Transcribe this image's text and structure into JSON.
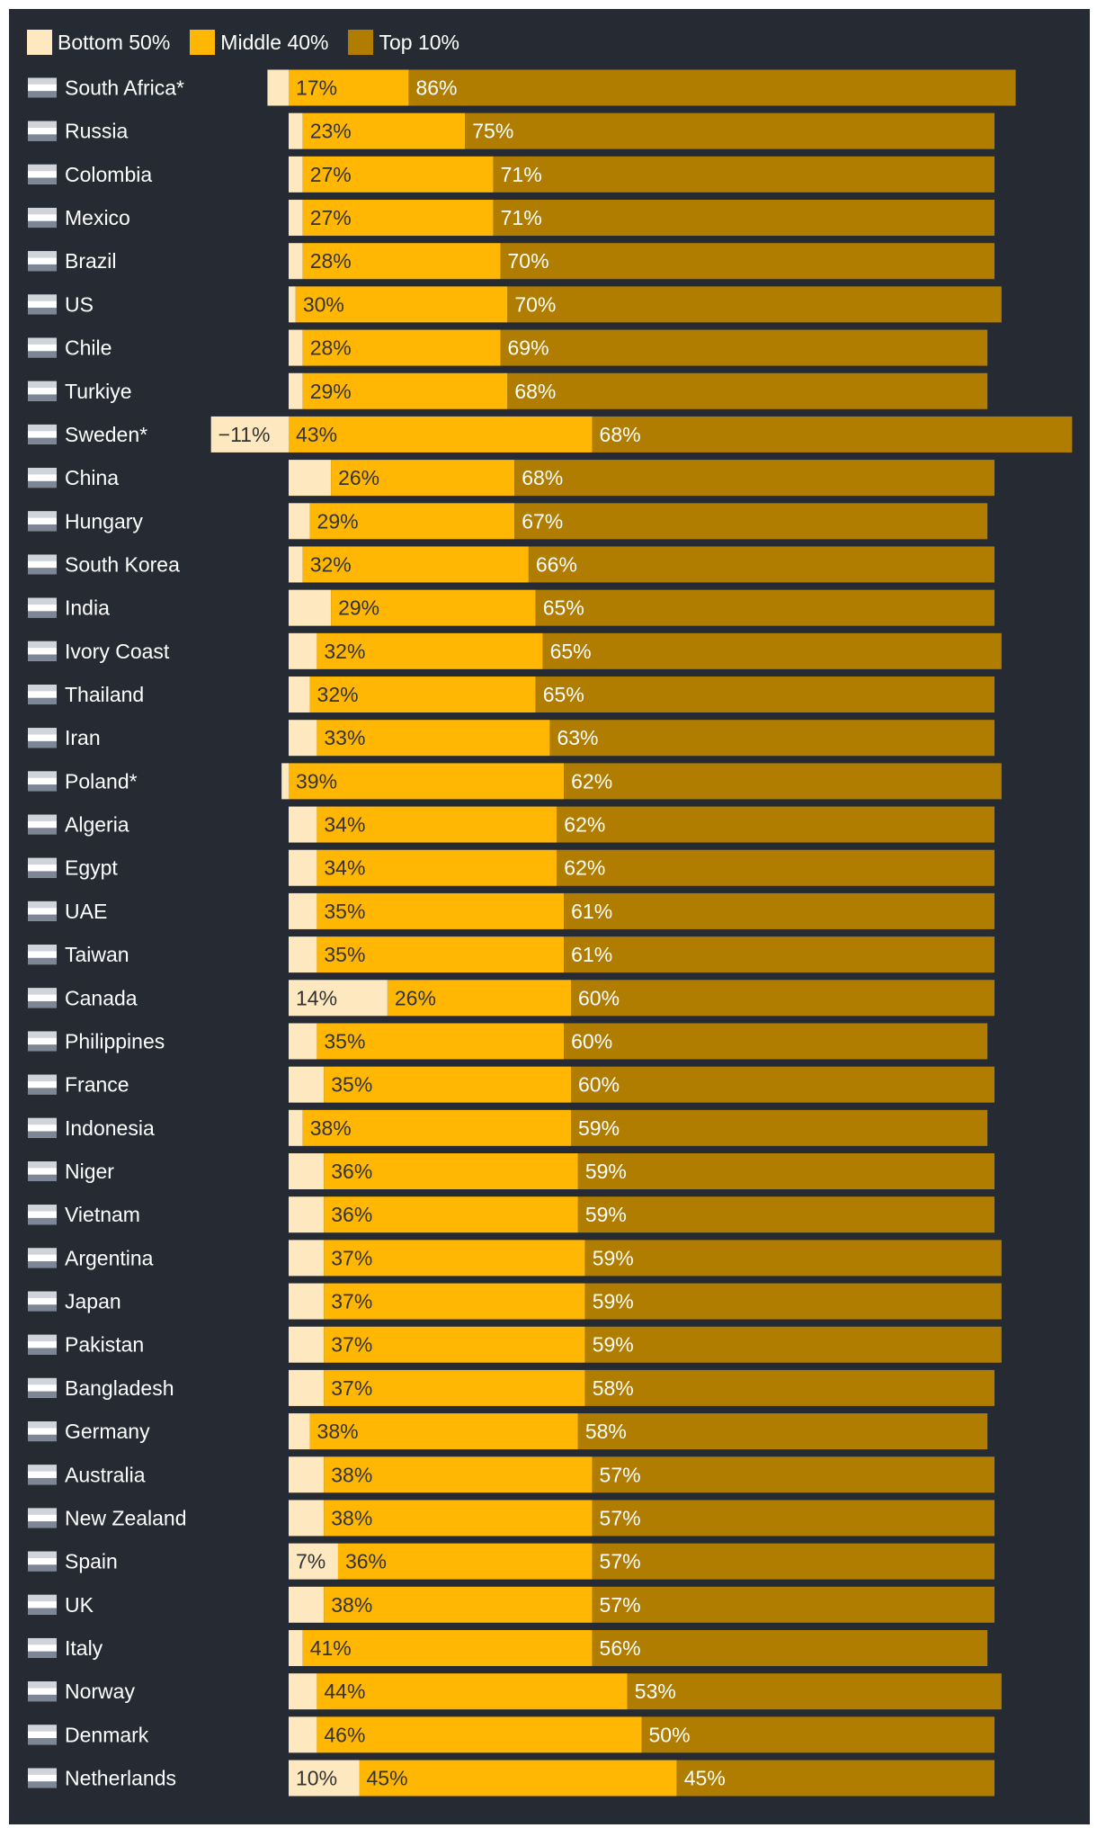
{
  "chart_data": {
    "type": "bar",
    "stacked": true,
    "legend_position": "top-left",
    "grid": false,
    "colors": {
      "background": "#262b33",
      "bottom_50": "#fde8c0",
      "middle_40": "#ffb703",
      "top_10": "#b07d00",
      "label_dark": "#333333",
      "label_light": "#ffffff"
    },
    "legend": [
      {
        "key": "bottom_50",
        "label": "Bottom 50%"
      },
      {
        "key": "middle_40",
        "label": "Middle 40%"
      },
      {
        "key": "top_10",
        "label": "Top 10%"
      }
    ],
    "series": [
      {
        "name": "Bottom 50%",
        "values": [
          -3,
          2,
          2,
          2,
          2,
          1,
          2,
          2,
          -11,
          6,
          3,
          2,
          6,
          4,
          3,
          4,
          -1,
          4,
          4,
          4,
          4,
          14,
          4,
          5,
          2,
          5,
          5,
          5,
          5,
          5,
          5,
          3,
          5,
          5,
          7,
          5,
          2,
          4,
          4,
          10
        ]
      },
      {
        "name": "Middle 40%",
        "values": [
          17,
          23,
          27,
          27,
          28,
          30,
          28,
          29,
          43,
          26,
          29,
          32,
          29,
          32,
          32,
          33,
          39,
          34,
          34,
          35,
          35,
          26,
          35,
          35,
          38,
          36,
          36,
          37,
          37,
          37,
          37,
          38,
          38,
          38,
          36,
          38,
          41,
          44,
          46,
          45
        ]
      },
      {
        "name": "Top 10%",
        "values": [
          86,
          75,
          71,
          71,
          70,
          70,
          69,
          68,
          68,
          68,
          67,
          66,
          65,
          65,
          65,
          63,
          62,
          62,
          62,
          61,
          61,
          60,
          60,
          60,
          59,
          59,
          59,
          59,
          59,
          59,
          58,
          58,
          57,
          57,
          57,
          57,
          56,
          53,
          50,
          45
        ]
      }
    ],
    "value_labels": [
      {
        "bottom": "",
        "middle": "17%",
        "top": "86%"
      },
      {
        "bottom": "",
        "middle": "23%",
        "top": "75%"
      },
      {
        "bottom": "",
        "middle": "27%",
        "top": "71%"
      },
      {
        "bottom": "",
        "middle": "27%",
        "top": "71%"
      },
      {
        "bottom": "",
        "middle": "28%",
        "top": "70%"
      },
      {
        "bottom": "",
        "middle": "30%",
        "top": "70%"
      },
      {
        "bottom": "",
        "middle": "28%",
        "top": "69%"
      },
      {
        "bottom": "",
        "middle": "29%",
        "top": "68%"
      },
      {
        "bottom": "−11%",
        "middle": "43%",
        "top": "68%"
      },
      {
        "bottom": "",
        "middle": "26%",
        "top": "68%"
      },
      {
        "bottom": "",
        "middle": "29%",
        "top": "67%"
      },
      {
        "bottom": "",
        "middle": "32%",
        "top": "66%"
      },
      {
        "bottom": "",
        "middle": "29%",
        "top": "65%"
      },
      {
        "bottom": "",
        "middle": "32%",
        "top": "65%"
      },
      {
        "bottom": "",
        "middle": "32%",
        "top": "65%"
      },
      {
        "bottom": "",
        "middle": "33%",
        "top": "63%"
      },
      {
        "bottom": "",
        "middle": "39%",
        "top": "62%"
      },
      {
        "bottom": "",
        "middle": "34%",
        "top": "62%"
      },
      {
        "bottom": "",
        "middle": "34%",
        "top": "62%"
      },
      {
        "bottom": "",
        "middle": "35%",
        "top": "61%"
      },
      {
        "bottom": "",
        "middle": "35%",
        "top": "61%"
      },
      {
        "bottom": "14%",
        "middle": "26%",
        "top": "60%"
      },
      {
        "bottom": "",
        "middle": "35%",
        "top": "60%"
      },
      {
        "bottom": "",
        "middle": "35%",
        "top": "60%"
      },
      {
        "bottom": "",
        "middle": "38%",
        "top": "59%"
      },
      {
        "bottom": "",
        "middle": "36%",
        "top": "59%"
      },
      {
        "bottom": "",
        "middle": "36%",
        "top": "59%"
      },
      {
        "bottom": "",
        "middle": "37%",
        "top": "59%"
      },
      {
        "bottom": "",
        "middle": "37%",
        "top": "59%"
      },
      {
        "bottom": "",
        "middle": "37%",
        "top": "59%"
      },
      {
        "bottom": "",
        "middle": "37%",
        "top": "58%"
      },
      {
        "bottom": "",
        "middle": "38%",
        "top": "58%"
      },
      {
        "bottom": "",
        "middle": "38%",
        "top": "57%"
      },
      {
        "bottom": "",
        "middle": "38%",
        "top": "57%"
      },
      {
        "bottom": "7%",
        "middle": "36%",
        "top": "57%"
      },
      {
        "bottom": "",
        "middle": "38%",
        "top": "57%"
      },
      {
        "bottom": "",
        "middle": "41%",
        "top": "56%"
      },
      {
        "bottom": "",
        "middle": "44%",
        "top": "53%"
      },
      {
        "bottom": "",
        "middle": "46%",
        "top": "50%"
      },
      {
        "bottom": "10%",
        "middle": "45%",
        "top": "45%"
      }
    ],
    "countries": [
      {
        "name": "South Africa*",
        "flag": "south-africa-flag"
      },
      {
        "name": "Russia",
        "flag": "russia-flag"
      },
      {
        "name": "Colombia",
        "flag": "colombia-flag"
      },
      {
        "name": "Mexico",
        "flag": "mexico-flag"
      },
      {
        "name": "Brazil",
        "flag": "brazil-flag"
      },
      {
        "name": "US",
        "flag": "us-flag"
      },
      {
        "name": "Chile",
        "flag": "chile-flag"
      },
      {
        "name": "Turkiye",
        "flag": "turkiye-flag"
      },
      {
        "name": "Sweden*",
        "flag": "sweden-flag"
      },
      {
        "name": "China",
        "flag": "china-flag"
      },
      {
        "name": "Hungary",
        "flag": "hungary-flag"
      },
      {
        "name": "South Korea",
        "flag": "south-korea-flag"
      },
      {
        "name": "India",
        "flag": "india-flag"
      },
      {
        "name": "Ivory Coast",
        "flag": "ivory-coast-flag"
      },
      {
        "name": "Thailand",
        "flag": "thailand-flag"
      },
      {
        "name": "Iran",
        "flag": "iran-flag"
      },
      {
        "name": "Poland*",
        "flag": "poland-flag"
      },
      {
        "name": "Algeria",
        "flag": "algeria-flag"
      },
      {
        "name": "Egypt",
        "flag": "egypt-flag"
      },
      {
        "name": "UAE",
        "flag": "uae-flag"
      },
      {
        "name": "Taiwan",
        "flag": "taiwan-flag"
      },
      {
        "name": "Canada",
        "flag": "canada-flag"
      },
      {
        "name": "Philippines",
        "flag": "philippines-flag"
      },
      {
        "name": "France",
        "flag": "france-flag"
      },
      {
        "name": "Indonesia",
        "flag": "indonesia-flag"
      },
      {
        "name": "Niger",
        "flag": "niger-flag"
      },
      {
        "name": "Vietnam",
        "flag": "vietnam-flag"
      },
      {
        "name": "Argentina",
        "flag": "argentina-flag"
      },
      {
        "name": "Japan",
        "flag": "japan-flag"
      },
      {
        "name": "Pakistan",
        "flag": "pakistan-flag"
      },
      {
        "name": "Bangladesh",
        "flag": "bangladesh-flag"
      },
      {
        "name": "Germany",
        "flag": "germany-flag"
      },
      {
        "name": "Australia",
        "flag": "australia-flag"
      },
      {
        "name": "New Zealand",
        "flag": "new-zealand-flag"
      },
      {
        "name": "Spain",
        "flag": "spain-flag"
      },
      {
        "name": "UK",
        "flag": "uk-flag"
      },
      {
        "name": "Italy",
        "flag": "italy-flag"
      },
      {
        "name": "Norway",
        "flag": "norway-flag"
      },
      {
        "name": "Denmark",
        "flag": "denmark-flag"
      },
      {
        "name": "Netherlands",
        "flag": "netherlands-flag"
      }
    ]
  }
}
